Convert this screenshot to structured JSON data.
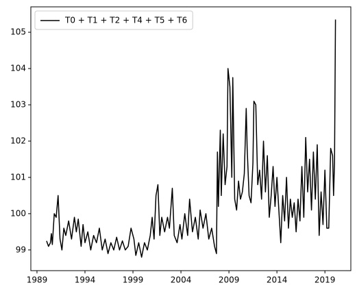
{
  "chart_data": {
    "type": "line",
    "x": [
      1990.0,
      1990.2,
      1990.4,
      1990.5,
      1990.6,
      1990.8,
      1991.0,
      1991.2,
      1991.4,
      1991.6,
      1991.8,
      1992.0,
      1992.3,
      1992.6,
      1992.9,
      1993.1,
      1993.3,
      1993.6,
      1993.8,
      1994.0,
      1994.3,
      1994.6,
      1994.9,
      1995.2,
      1995.5,
      1995.8,
      1996.1,
      1996.4,
      1996.7,
      1997.0,
      1997.3,
      1997.6,
      1997.9,
      1998.2,
      1998.5,
      1998.8,
      1999.1,
      1999.3,
      1999.6,
      1999.9,
      2000.2,
      2000.5,
      2000.8,
      2001.0,
      2001.2,
      2001.4,
      2001.6,
      2001.8,
      2002.0,
      2002.3,
      2002.6,
      2002.8,
      2003.1,
      2003.3,
      2003.6,
      2003.9,
      2004.1,
      2004.4,
      2004.7,
      2004.9,
      2005.2,
      2005.5,
      2005.8,
      2006.0,
      2006.3,
      2006.6,
      2006.9,
      2007.2,
      2007.5,
      2007.7,
      2007.8,
      2007.9,
      2008.1,
      2008.2,
      2008.4,
      2008.6,
      2008.8,
      2008.9,
      2009.1,
      2009.3,
      2009.4,
      2009.6,
      2009.8,
      2010.0,
      2010.2,
      2010.4,
      2010.6,
      2010.8,
      2010.9,
      2011.1,
      2011.3,
      2011.5,
      2011.6,
      2011.8,
      2012.0,
      2012.2,
      2012.4,
      2012.6,
      2012.8,
      2013.0,
      2013.2,
      2013.4,
      2013.6,
      2013.8,
      2014.0,
      2014.2,
      2014.4,
      2014.6,
      2014.8,
      2015.0,
      2015.2,
      2015.4,
      2015.6,
      2015.8,
      2016.0,
      2016.2,
      2016.4,
      2016.6,
      2016.8,
      2017.0,
      2017.2,
      2017.4,
      2017.6,
      2017.8,
      2018.0,
      2018.2,
      2018.4,
      2018.6,
      2018.8,
      2019.0,
      2019.2,
      2019.4,
      2019.6,
      2019.8,
      2019.9,
      2020.0,
      2020.1
    ],
    "series": [
      {
        "name": "T0 + T1 + T2 + T4 + T5 + T6",
        "color": "#000000",
        "values": [
          99.25,
          99.1,
          99.2,
          99.45,
          99.15,
          100.0,
          99.9,
          100.5,
          99.3,
          99.0,
          99.6,
          99.4,
          99.8,
          99.3,
          99.9,
          99.5,
          99.85,
          99.1,
          99.7,
          99.2,
          99.5,
          99.0,
          99.4,
          99.2,
          99.6,
          99.0,
          99.3,
          98.9,
          99.2,
          99.0,
          99.35,
          99.0,
          99.25,
          99.0,
          99.1,
          99.6,
          99.3,
          98.85,
          99.2,
          98.8,
          99.2,
          99.0,
          99.4,
          99.9,
          99.3,
          100.5,
          100.8,
          99.4,
          99.9,
          99.5,
          99.9,
          99.6,
          100.7,
          99.4,
          99.2,
          99.7,
          99.3,
          100.0,
          99.4,
          100.4,
          99.5,
          99.9,
          99.3,
          100.1,
          99.6,
          100.0,
          99.3,
          99.6,
          99.1,
          98.9,
          101.7,
          100.2,
          102.3,
          100.5,
          102.2,
          100.8,
          101.3,
          104.0,
          103.5,
          101.0,
          103.75,
          100.4,
          100.1,
          100.9,
          100.4,
          100.6,
          101.1,
          102.9,
          101.8,
          100.5,
          100.3,
          101.4,
          103.1,
          103.0,
          100.8,
          101.2,
          100.4,
          102.0,
          100.6,
          101.6,
          99.9,
          100.5,
          101.3,
          100.2,
          101.0,
          100.1,
          99.2,
          100.5,
          99.8,
          101.0,
          99.6,
          100.4,
          99.9,
          100.3,
          99.5,
          100.4,
          99.8,
          101.3,
          99.9,
          102.1,
          100.6,
          101.5,
          100.1,
          101.7,
          100.4,
          101.9,
          99.4,
          100.6,
          99.7,
          101.2,
          99.6,
          99.6,
          101.8,
          101.6,
          100.5,
          101.4,
          105.35
        ]
      }
    ],
    "xlim": [
      1988.36,
      2021.7
    ],
    "ylim": [
      98.43,
      105.7
    ],
    "xticks": [
      1989,
      1994,
      1999,
      2004,
      2009,
      2014,
      2019
    ],
    "yticks": [
      99,
      100,
      101,
      102,
      103,
      104,
      105
    ],
    "legend": "upper left"
  }
}
